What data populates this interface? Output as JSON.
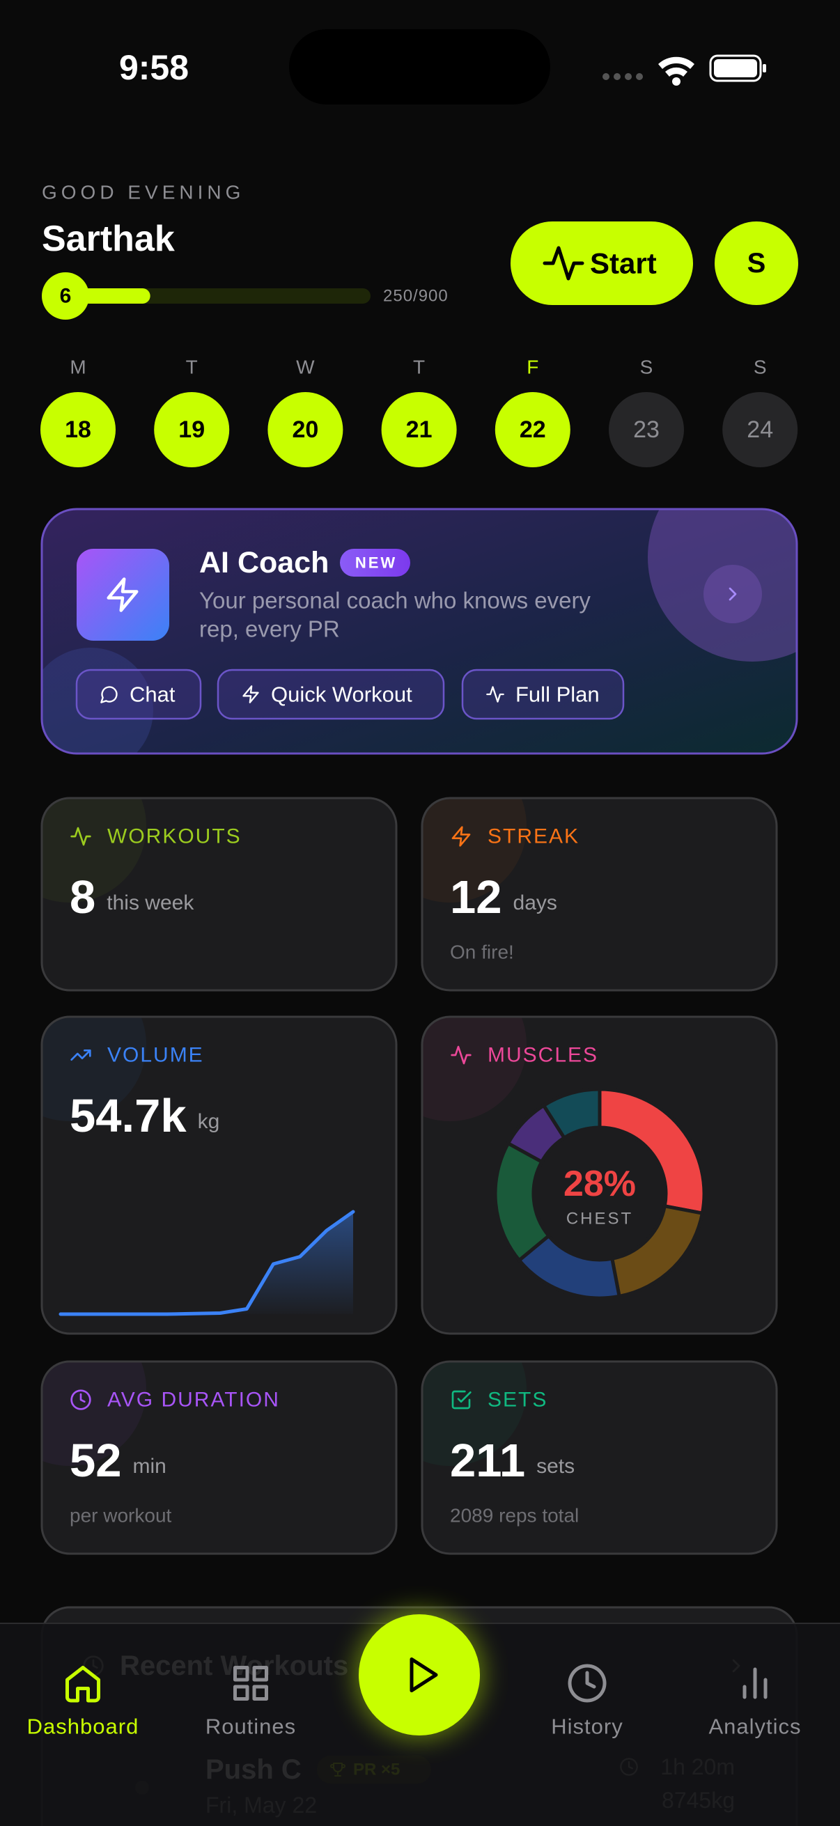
{
  "status_bar": {
    "time": "9:58"
  },
  "header": {
    "greeting": "GOOD EVENING",
    "name": "Sarthak",
    "level": "6",
    "xp_label": "250/900",
    "xp": 250,
    "xp_goal": 900,
    "start_button": "Start",
    "avatar": "S"
  },
  "week": {
    "days": [
      {
        "letter": "M",
        "date": "18",
        "done": true
      },
      {
        "letter": "T",
        "date": "19",
        "done": true
      },
      {
        "letter": "W",
        "date": "20",
        "done": true
      },
      {
        "letter": "T",
        "date": "21",
        "done": true
      },
      {
        "letter": "F",
        "date": "22",
        "done": true,
        "today": true
      },
      {
        "letter": "S",
        "date": "23",
        "done": false
      },
      {
        "letter": "S",
        "date": "24",
        "done": false
      }
    ]
  },
  "ai_coach": {
    "title": "AI Coach",
    "badge": "NEW",
    "description_lines": [
      "Your personal coach who knows every",
      "rep, every PR"
    ],
    "actions": [
      "Chat",
      "Quick Workout",
      "Full Plan"
    ]
  },
  "stats": [
    {
      "label": "WORKOUTS",
      "color": "#9ccc1f",
      "value": "8",
      "unit": "this week"
    },
    {
      "label": "STREAK",
      "color": "#f97316",
      "value": "12",
      "unit": "days",
      "note": "On fire!"
    },
    {
      "label": "VOLUME",
      "color": "#3b82f6",
      "value": "54.7k",
      "unit": "kg",
      "sparkline": [
        0,
        0,
        0,
        0,
        0,
        0.5,
        1,
        5,
        48,
        55,
        80,
        98
      ]
    },
    {
      "label": "MUSCLES",
      "color": "#ec4899",
      "donut": {
        "center_text": "28%",
        "center_label": "CHEST",
        "segments": [
          {
            "value": 28,
            "color": "#ef4444"
          },
          {
            "value": 19,
            "color": "#6b4c16"
          },
          {
            "value": 17,
            "color": "#22407a"
          },
          {
            "value": 19,
            "color": "#1a5a3a"
          },
          {
            "value": 8,
            "color": "#4a2e7a"
          },
          {
            "value": 9,
            "color": "#134b57"
          }
        ]
      }
    },
    {
      "label": "AVG DURATION",
      "color": "#a855f7",
      "value": "52",
      "unit": "min",
      "note": "per workout"
    },
    {
      "label": "SETS",
      "color": "#10b981",
      "value": "211",
      "unit": "sets",
      "note": "2089 reps total"
    }
  ],
  "recent": {
    "title": "Recent Workouts",
    "item": {
      "name": "Push C",
      "badge": "PR ×5",
      "date": "Fri, May 22",
      "duration": "1h 20m",
      "volume": "8745kg"
    }
  },
  "nav": {
    "items": [
      "Dashboard",
      "Routines",
      "History",
      "Analytics"
    ],
    "active": 0
  }
}
